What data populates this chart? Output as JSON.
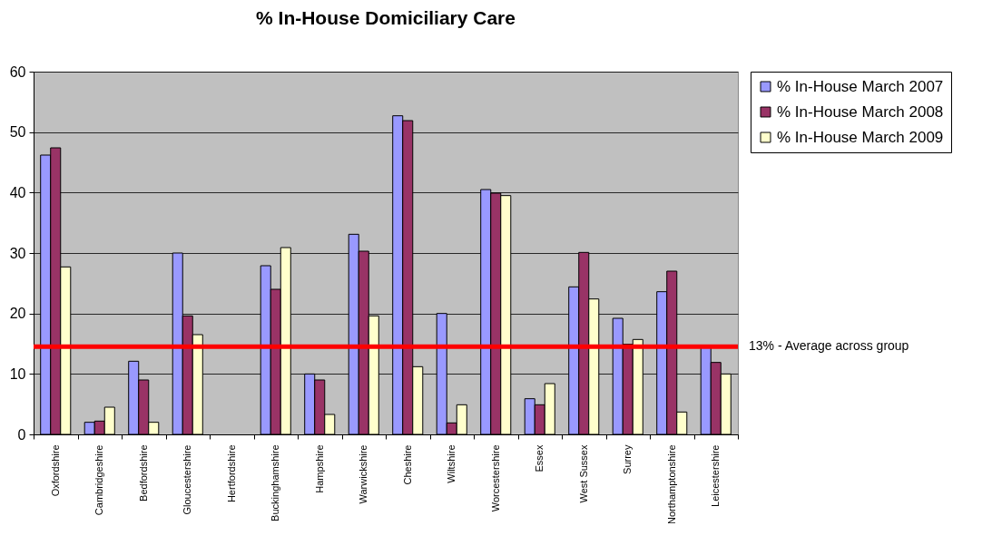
{
  "chart_data": {
    "type": "bar",
    "title": "% In-House Domiciliary Care",
    "categories": [
      "Oxfordshire",
      "Cambridgeshire",
      "Bedfordshire",
      "Gloucestershire",
      "Hertfordshire",
      "Buckinghamshire",
      "Hampshire",
      "Warwickshire",
      "Cheshire",
      "Wiltshire",
      "Worcestershire",
      "Essex",
      "West Sussex",
      "Surrey",
      "Northamptonshire",
      "Leicestershire"
    ],
    "series": [
      {
        "name": "% In-House March 2007",
        "color": "#9999ff",
        "values": [
          46.2,
          2.0,
          12.1,
          30.0,
          null,
          27.9,
          10.0,
          33.1,
          52.7,
          20.0,
          40.5,
          5.9,
          24.4,
          19.2,
          23.6,
          14.5
        ]
      },
      {
        "name": "% In-House March 2008",
        "color": "#993366",
        "values": [
          47.4,
          2.2,
          9.0,
          19.6,
          null,
          24.0,
          9.0,
          30.3,
          51.9,
          1.9,
          39.9,
          4.9,
          30.1,
          14.9,
          27.0,
          11.9
        ]
      },
      {
        "name": "% In-House March 2009",
        "color": "#ffffcc",
        "values": [
          27.7,
          4.5,
          2.0,
          16.5,
          null,
          30.9,
          3.3,
          19.6,
          11.2,
          4.9,
          39.5,
          8.4,
          22.4,
          15.7,
          3.7,
          10.0
        ]
      }
    ],
    "ylim": [
      0,
      60
    ],
    "yticks": [
      0,
      10,
      20,
      30,
      40,
      50,
      60
    ],
    "grid": "y",
    "legend": "right",
    "ref_lines": [
      {
        "axis": "y",
        "value": 14.5,
        "label": "13% - Average across group",
        "color": "#ff0000"
      }
    ]
  }
}
